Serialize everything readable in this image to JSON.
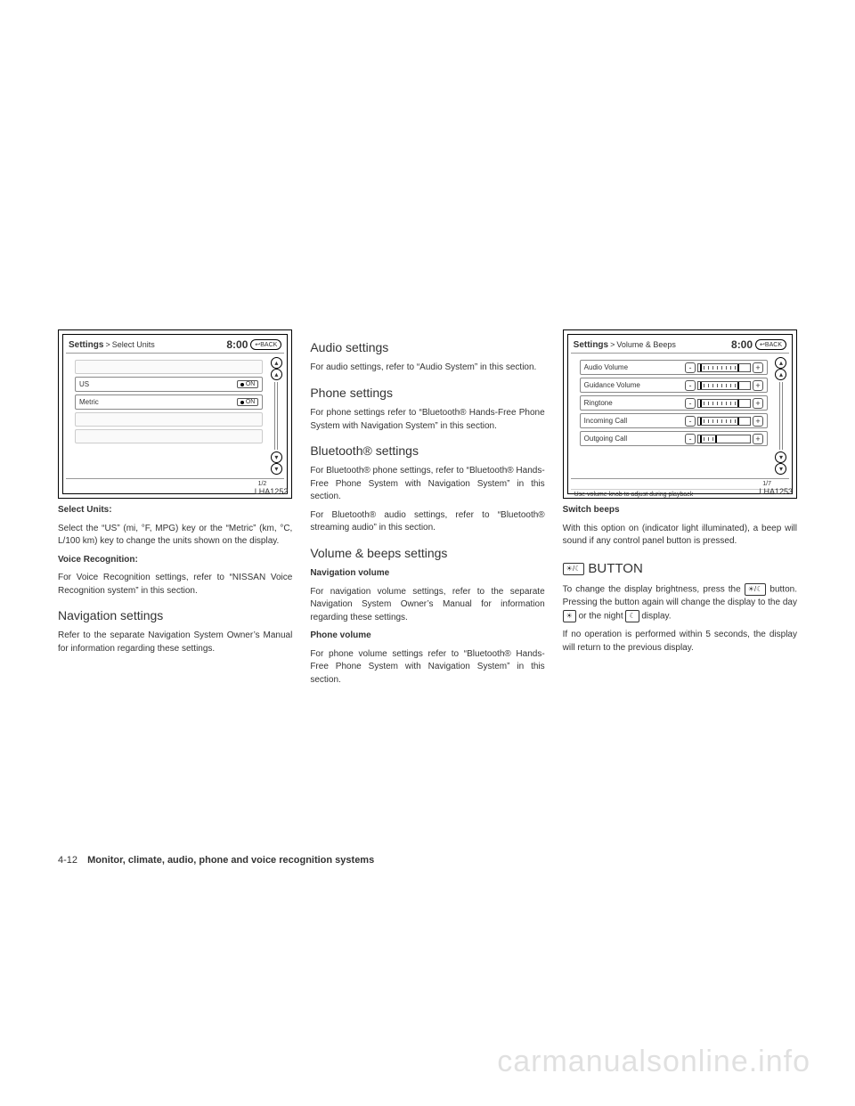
{
  "screen1": {
    "title_bold": "Settings",
    "breadcrumb": "Select Units",
    "time": "8:00",
    "back": "BACK",
    "rows": [
      {
        "label": "US",
        "on": "ON"
      },
      {
        "label": "Metric",
        "on": "ON"
      }
    ],
    "page_ind": "1/2",
    "fig": "LHA1252"
  },
  "screen2": {
    "title_bold": "Settings",
    "breadcrumb": "Volume & Beeps",
    "time": "8:00",
    "back": "BACK",
    "rows": [
      {
        "label": "Audio Volume"
      },
      {
        "label": "Guidance Volume"
      },
      {
        "label": "Ringtone"
      },
      {
        "label": "Incoming Call"
      },
      {
        "label": "Outgoing Call"
      }
    ],
    "page_ind": "1/7",
    "hint": "Use volume knob to adjust during playback",
    "fig": "LHA1253"
  },
  "col1": {
    "h_select": "Select Units:",
    "p_select": "Select the “US” (mi, °F, MPG) key or the “Metric” (km, °C, L/100 km) key to change the units shown on the display.",
    "h_voice": "Voice Recognition:",
    "p_voice": "For Voice Recognition settings, refer to “NISSAN Voice Recognition system” in this section.",
    "h_nav": "Navigation settings",
    "p_nav": "Refer to the separate Navigation System Owner’s Manual for information regarding these settings."
  },
  "col2": {
    "h_audio": "Audio settings",
    "p_audio": "For audio settings, refer to “Audio System” in this section.",
    "h_phone": "Phone settings",
    "p_phone": "For phone settings refer to “Bluetooth® Hands-Free Phone System with Navigation System” in this section.",
    "h_bt": "Bluetooth® settings",
    "p_bt1": "For Bluetooth® phone settings, refer to “Bluetooth® Hands-Free Phone System with Navigation System” in this section.",
    "p_bt2": "For Bluetooth® audio settings, refer to “Bluetooth® streaming audio” in this section.",
    "h_vol": "Volume & beeps settings",
    "b_navvol": "Navigation volume",
    "p_navvol": "For navigation volume settings, refer to the separate Navigation System Owner’s Manual for information regarding these settings.",
    "b_phvol": "Phone volume",
    "p_phvol": "For phone volume settings refer to “Bluetooth® Hands-Free Phone System with Navigation System” in this section."
  },
  "col3": {
    "h_switch": "Switch beeps",
    "p_switch": "With this option on (indicator light illuminated), a beep will sound if any control panel button is pressed.",
    "h_button": " BUTTON",
    "icon_bright": "☀/☾",
    "p_btn1a": "To change the display brightness, press the ",
    "p_btn1b": " button. Pressing the button again will change the display to the day ",
    "p_btn1c": " or the night ",
    "p_btn1d": " display.",
    "icon_day": "☀",
    "icon_night": "☾",
    "p_btn2": "If no operation is performed within 5 seconds, the display will return to the previous display."
  },
  "footer": {
    "pn": "4-12",
    "chapter": "Monitor, climate, audio, phone and voice recognition systems"
  },
  "watermark": "carmanualsonline.info"
}
